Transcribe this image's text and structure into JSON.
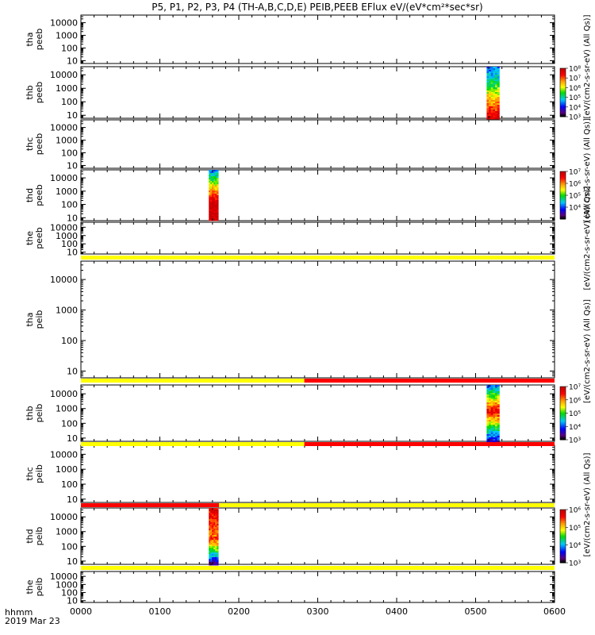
{
  "chart_data": {
    "type": "heatmap",
    "title": "P5, P1, P2, P3, P4 (TH-A,B,C,D,E) PEIB,PEEB EFlux eV/(eV*cm²*sec*sr)",
    "x_range_hours": [
      0,
      6
    ],
    "x_tick_labels": [
      "0000",
      "0100",
      "0200",
      "0300",
      "0400",
      "0500",
      "0600"
    ],
    "y_scale": "log",
    "y_range": [
      6,
      40000
    ],
    "y_tick_labels": [
      "10",
      "100",
      "1000",
      "10000"
    ],
    "footer": {
      "label": "hhmm",
      "date": "2019 Mar 23"
    },
    "panels": [
      {
        "label_top": "tha",
        "label_bottom": "peeb",
        "bursts": []
      },
      {
        "label_top": "thb",
        "label_bottom": "peeb",
        "bursts": [
          {
            "x_start": 5.14,
            "x_end": 5.3,
            "profile": "electron"
          }
        ]
      },
      {
        "label_top": "thc",
        "label_bottom": "peeb",
        "bursts": []
      },
      {
        "label_top": "thd",
        "label_bottom": "peeb",
        "bursts": [
          {
            "x_start": 1.62,
            "x_end": 1.74,
            "profile": "electron_d"
          }
        ]
      },
      {
        "label_top": "the",
        "label_bottom": "peeb",
        "bursts": []
      },
      {
        "label_top": "tha",
        "label_bottom": "peib",
        "bursts": []
      },
      {
        "label_top": "thb",
        "label_bottom": "peib",
        "bursts": [
          {
            "x_start": 5.14,
            "x_end": 5.3,
            "profile": "ion"
          }
        ]
      },
      {
        "label_top": "thc",
        "label_bottom": "peib",
        "bursts": []
      },
      {
        "label_top": "thd",
        "label_bottom": "peib",
        "bursts": [
          {
            "x_start": 1.62,
            "x_end": 1.74,
            "profile": "ion_d"
          }
        ]
      },
      {
        "label_top": "the",
        "label_bottom": "peib",
        "bursts": []
      }
    ],
    "status_bars": [
      {
        "after_panel": 4,
        "segments": [
          {
            "x_start": 0,
            "x_end": 6,
            "color": "#ffff00"
          }
        ]
      },
      {
        "after_panel": 5,
        "segments": [
          {
            "x_start": 0,
            "x_end": 2.83,
            "color": "#ffff00"
          },
          {
            "x_start": 2.83,
            "x_end": 6,
            "color": "#ff0000"
          }
        ]
      },
      {
        "after_panel": 6,
        "segments": [
          {
            "x_start": 0,
            "x_end": 2.83,
            "color": "#ffff00"
          },
          {
            "x_start": 2.83,
            "x_end": 6,
            "color": "#ff0000"
          }
        ]
      },
      {
        "after_panel": 7,
        "segments": [
          {
            "x_start": 0,
            "x_end": 1.75,
            "color": "#ff0000"
          },
          {
            "x_start": 1.75,
            "x_end": 6,
            "color": "#ffff00"
          }
        ]
      },
      {
        "after_panel": 8,
        "segments": [
          {
            "x_start": 0,
            "x_end": 6,
            "color": "#ffff00"
          }
        ]
      }
    ],
    "colorbars": [
      {
        "for_panel": 1,
        "min_exp": 3,
        "max_exp": 8,
        "tick_labels": [
          "10³",
          "10⁴",
          "10⁵",
          "10⁶",
          "10⁷",
          "10⁸"
        ]
      },
      {
        "for_panel": 3,
        "min_exp": 3,
        "max_exp": 7,
        "tick_labels": [
          "10⁴",
          "10⁵",
          "10⁶",
          "10⁷"
        ]
      },
      {
        "for_panel": 6,
        "min_exp": 3,
        "max_exp": 7,
        "tick_labels": [
          "10³",
          "10⁴",
          "10⁵",
          "10⁶",
          "10⁷"
        ]
      },
      {
        "for_panel": 8,
        "min_exp": 3,
        "max_exp": 6,
        "tick_labels": [
          "10³",
          "10⁴",
          "10⁵",
          "10⁶"
        ]
      }
    ],
    "unit_labels": [
      {
        "text": "[eV/(cm2-s-sr-eV) (All Qs)]",
        "panels": [
          0,
          1
        ]
      },
      {
        "text": "[eV/(cm2-s-sr-eV) (All Qs)]",
        "panels": [
          2,
          3
        ]
      },
      {
        "text": "[eV/(cm2-s-sr-eV) (All Qs)]",
        "panels": [
          4
        ]
      },
      {
        "text": "[eV/(cm2-s-sr-eV) (All Qs)]",
        "panels": [
          5,
          6
        ]
      },
      {
        "text": "[eV/(cm2-s-sr-eV) (All Qs)]",
        "panels": [
          7,
          8
        ]
      }
    ]
  }
}
